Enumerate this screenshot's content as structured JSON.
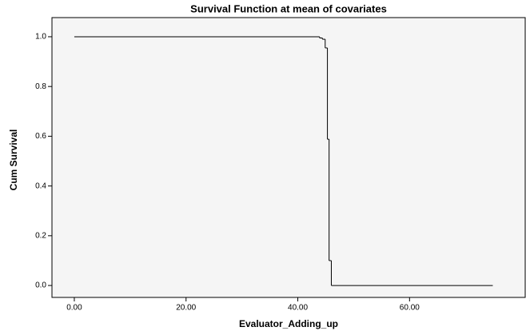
{
  "chart_data": {
    "type": "step",
    "title": "Survival Function at mean of covariates",
    "x_label": "Evaluator_Adding_up",
    "y_label": "Cum Survival",
    "x": [
      0,
      43.9,
      44.4,
      44.9,
      45.3,
      45.6,
      46.0,
      74.9
    ],
    "values": [
      1.0,
      0.995,
      0.99,
      0.955,
      0.588,
      0.1,
      0.0,
      0.0
    ],
    "color": "#000000",
    "xlim": [
      -4,
      80.7
    ],
    "ylim": [
      -0.048,
      1.077
    ],
    "xticks": [
      {
        "value": 0,
        "label": "0.00"
      },
      {
        "value": 20,
        "label": "20.00"
      },
      {
        "value": 40,
        "label": "40.00"
      },
      {
        "value": 60,
        "label": "60.00"
      }
    ],
    "yticks": [
      {
        "value": 0,
        "label": "0.0"
      },
      {
        "value": 0.2,
        "label": "0.2"
      },
      {
        "value": 0.4,
        "label": "0.4"
      },
      {
        "value": 0.6,
        "label": "0.6"
      },
      {
        "value": 0.8,
        "label": "0.8"
      },
      {
        "value": 1,
        "label": "1.0"
      }
    ]
  }
}
